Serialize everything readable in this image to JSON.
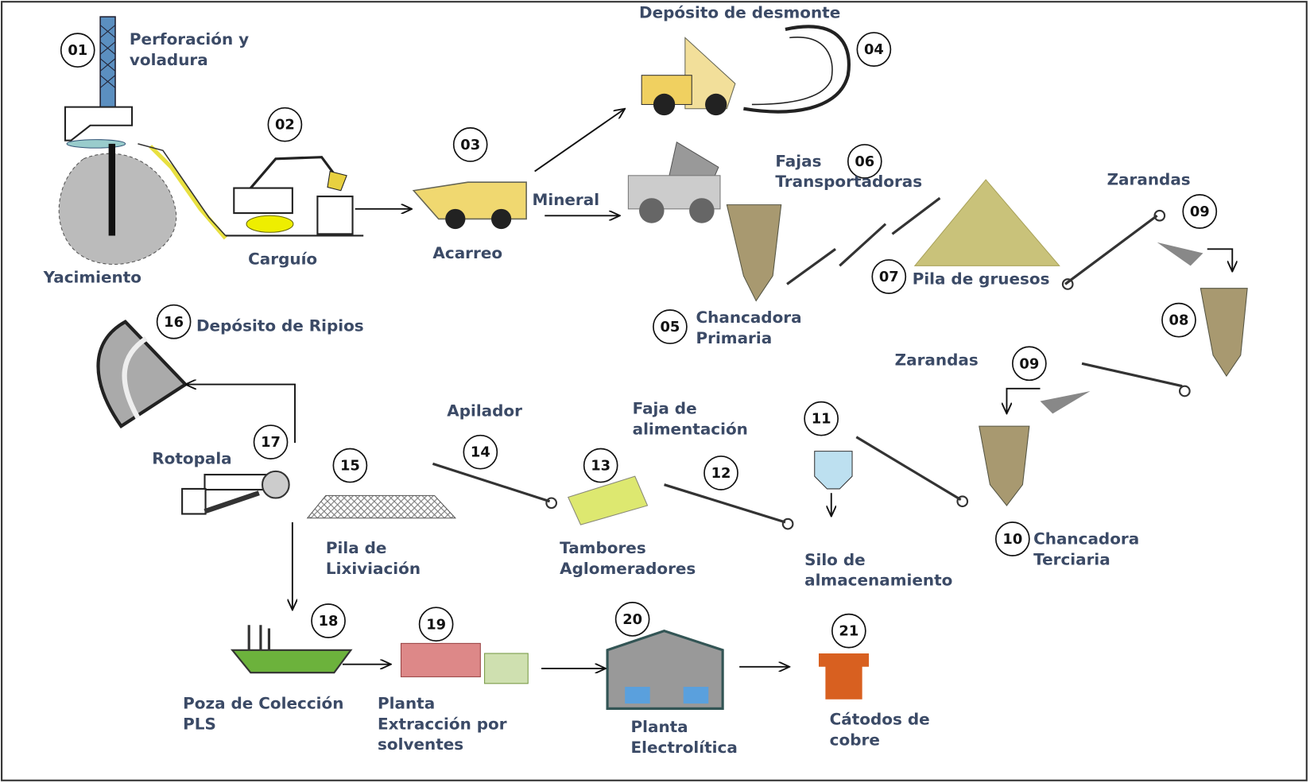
{
  "nodes": [
    {
      "number": "01",
      "label": [
        "Perforación y",
        "voladura"
      ]
    },
    {
      "number": "02",
      "label": [
        "Carguío"
      ]
    },
    {
      "number": "03",
      "label": [
        "Acarreo"
      ]
    },
    {
      "number": "04",
      "label": [
        "Depósito de desmonte"
      ]
    },
    {
      "number": "05",
      "label": [
        "Chancadora",
        "Primaria"
      ]
    },
    {
      "number": "06",
      "label": [
        "Fajas",
        "Transportadoras"
      ]
    },
    {
      "number": "07",
      "label": [
        "Pila de gruesos"
      ]
    },
    {
      "number": "09",
      "label": [
        "Zarandas"
      ]
    },
    {
      "number": "08",
      "label": []
    },
    {
      "number": "09",
      "label": [
        "Zarandas"
      ]
    },
    {
      "number": "10",
      "label": [
        "Chancadora",
        "Terciaria"
      ]
    },
    {
      "number": "11",
      "label": [
        "Silo de",
        "almacenamiento"
      ]
    },
    {
      "number": "12",
      "label": [
        "Faja de",
        "alimentación"
      ]
    },
    {
      "number": "13",
      "label": [
        "Tambores",
        "Aglomeradores"
      ]
    },
    {
      "number": "14",
      "label": [
        "Apilador"
      ]
    },
    {
      "number": "15",
      "label": [
        "Pila de",
        "Lixiviación"
      ]
    },
    {
      "number": "16",
      "label": [
        "Depósito de Ripios"
      ]
    },
    {
      "number": "17",
      "label": [
        "Rotopala"
      ]
    },
    {
      "number": "18",
      "label": [
        "Poza de Colección",
        "PLS"
      ]
    },
    {
      "number": "19",
      "label": [
        "Planta",
        "Extracción por",
        "solventes"
      ]
    },
    {
      "number": "20",
      "label": [
        "Planta",
        "Electrolítica"
      ]
    },
    {
      "number": "21",
      "label": [
        "Cátodos de",
        "cobre"
      ]
    }
  ],
  "labels": [
    "Yacimiento",
    "Mineral"
  ]
}
